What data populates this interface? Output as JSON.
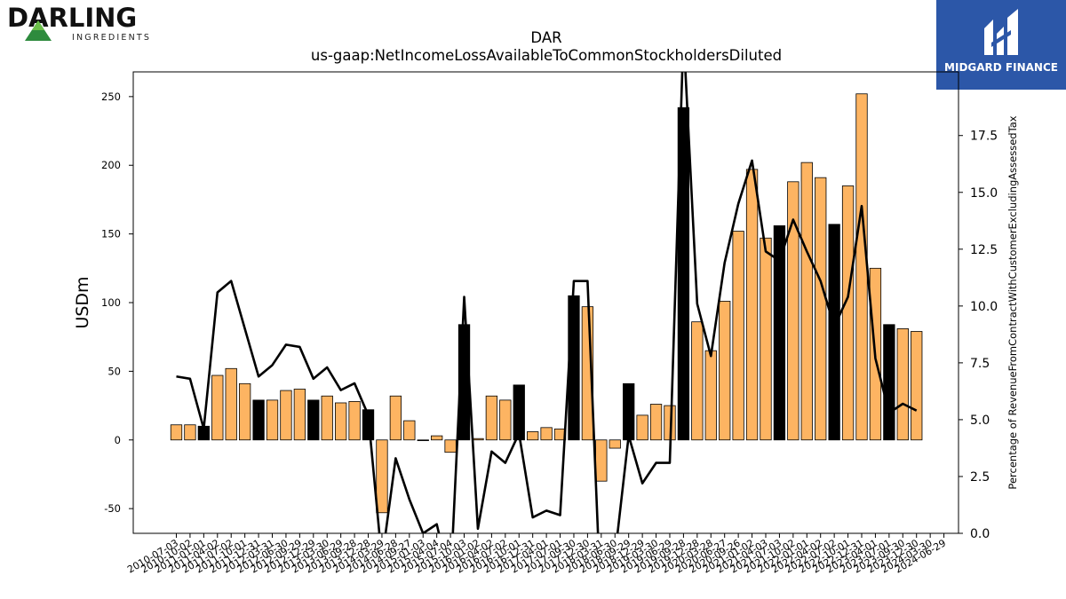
{
  "logos": {
    "left": {
      "name": "DARLING",
      "sub": "INGREDIENTS"
    },
    "right": {
      "name": "MIDGARD FINANCE"
    }
  },
  "chart_data": {
    "type": "bar",
    "title": "DAR",
    "subtitle": "us-gaap:NetIncomeLossAvailableToCommonStockholdersDiluted",
    "ylabel": "USDm",
    "y2label": "Percentage of RevenueFromContractWithCustomerExcludingAssessedTax",
    "ylim": [
      -68,
      268
    ],
    "y2lim": [
      0,
      20.3
    ],
    "yticks": [
      -50,
      0,
      50,
      100,
      150,
      200,
      250
    ],
    "y2ticks": [
      0.0,
      2.5,
      5.0,
      7.5,
      10.0,
      12.5,
      15.0,
      17.5
    ],
    "colors": {
      "bar": "#fdb462",
      "bar_highlight": "#000000",
      "line": "#000000"
    },
    "categories": [
      "2010-07-03",
      "2010-10-02",
      "2011-01-01",
      "2011-04-02",
      "2011-07-02",
      "2011-10-01",
      "2011-12-31",
      "2012-03-31",
      "2012-06-30",
      "2012-09-29",
      "2012-12-29",
      "2013-03-30",
      "2013-06-29",
      "2013-09-28",
      "2013-12-28",
      "2014-03-29",
      "2014-06-28",
      "2014-09-27",
      "2015-01-03",
      "2015-04-04",
      "2015-07-04",
      "2015-10-03",
      "2016-01-02",
      "2016-04-02",
      "2016-07-02",
      "2016-10-01",
      "2016-12-31",
      "2017-04-01",
      "2017-07-01",
      "2017-09-30",
      "2017-12-30",
      "2018-03-31",
      "2018-06-30",
      "2018-09-29",
      "2018-12-29",
      "2019-03-30",
      "2019-06-29",
      "2019-09-28",
      "2019-12-28",
      "2020-03-28",
      "2020-06-27",
      "2020-09-26",
      "2021-01-02",
      "2021-04-03",
      "2021-07-03",
      "2021-10-02",
      "2022-01-01",
      "2022-04-02",
      "2022-07-02",
      "2022-10-01",
      "2022-12-31",
      "2023-04-01",
      "2023-07-01",
      "2023-09-30",
      "2023-12-30",
      "2024-03-30",
      "2024-06-29"
    ],
    "values": [
      11,
      11,
      10,
      47,
      52,
      41,
      29,
      29,
      36,
      37,
      29,
      32,
      27,
      28,
      22,
      -53,
      32,
      14,
      0,
      3,
      -9,
      84,
      1,
      32,
      29,
      40,
      6,
      9,
      8,
      105,
      97,
      -30,
      -6,
      41,
      18,
      26,
      25,
      242,
      86,
      65,
      101,
      152,
      197,
      147,
      156,
      188,
      202,
      191,
      157,
      185,
      252,
      125,
      84,
      81,
      79,
      null,
      null
    ],
    "highlight": [
      false,
      false,
      true,
      false,
      false,
      false,
      true,
      false,
      false,
      false,
      true,
      false,
      false,
      false,
      true,
      false,
      false,
      false,
      false,
      false,
      false,
      true,
      false,
      false,
      false,
      true,
      false,
      false,
      false,
      true,
      false,
      false,
      false,
      true,
      false,
      false,
      false,
      true,
      false,
      false,
      false,
      false,
      false,
      false,
      true,
      false,
      false,
      false,
      true,
      false,
      false,
      false,
      true,
      false,
      false,
      false,
      false
    ],
    "pct": [
      6.9,
      6.8,
      4.6,
      10.6,
      11.1,
      9.0,
      6.9,
      7.4,
      8.3,
      8.2,
      6.8,
      7.3,
      6.3,
      6.6,
      5.2,
      -1.2,
      3.3,
      1.5,
      0.0,
      0.4,
      -2.2,
      10.4,
      0.2,
      3.6,
      3.1,
      4.4,
      0.7,
      1.0,
      0.8,
      11.1,
      11.1,
      -3.5,
      -1.0,
      4.3,
      2.2,
      3.1,
      3.1,
      22.0,
      10.1,
      7.8,
      11.9,
      14.5,
      16.4,
      12.4,
      12.0,
      13.8,
      12.4,
      11.1,
      9.1,
      10.4,
      14.4,
      7.7,
      5.3,
      5.7,
      5.4,
      null,
      null
    ]
  }
}
